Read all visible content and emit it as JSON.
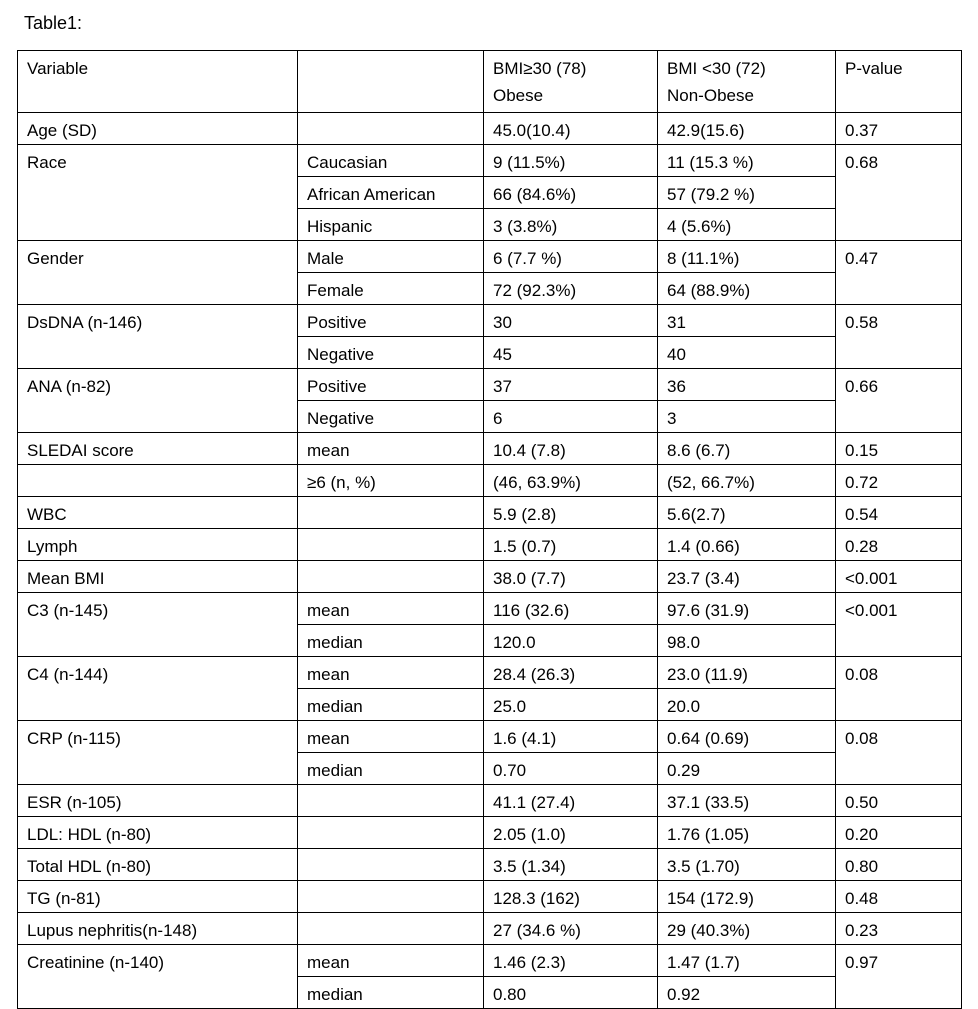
{
  "title": "Table1:",
  "header": {
    "variable": "Variable",
    "sub": "",
    "obese": [
      "BMI≥30 (78)",
      "Obese"
    ],
    "nonobese": [
      "BMI <30 (72)",
      "Non-Obese"
    ],
    "p": "P-value"
  },
  "groups": [
    {
      "variable": "Age (SD)",
      "p": "0.37",
      "rows": [
        {
          "sub": "",
          "obese": "45.0(10.4)",
          "nonobese": "42.9(15.6)"
        }
      ]
    },
    {
      "variable": "Race",
      "p": "0.68",
      "rows": [
        {
          "sub": "Caucasian",
          "obese": "9 (11.5%)",
          "nonobese": "11 (15.3 %)"
        },
        {
          "sub": "African American",
          "obese": "66 (84.6%)",
          "nonobese": "57 (79.2 %)"
        },
        {
          "sub": "Hispanic",
          "obese": "3 (3.8%)",
          "nonobese": "4 (5.6%)"
        }
      ]
    },
    {
      "variable": "Gender",
      "p": "0.47",
      "rows": [
        {
          "sub": "Male",
          "obese": "6 (7.7 %)",
          "nonobese": "8 (11.1%)"
        },
        {
          "sub": "Female",
          "obese": "72 (92.3%)",
          "nonobese": "64 (88.9%)"
        }
      ]
    },
    {
      "variable": "DsDNA (n-146)",
      "p": "0.58",
      "rows": [
        {
          "sub": "Positive",
          "obese": "30",
          "nonobese": "31"
        },
        {
          "sub": "Negative",
          "obese": "45",
          "nonobese": "40"
        }
      ]
    },
    {
      "variable": "ANA (n-82)",
      "p": "0.66",
      "rows": [
        {
          "sub": "Positive",
          "obese": "37",
          "nonobese": "36"
        },
        {
          "sub": "Negative",
          "obese": "6",
          "nonobese": "3"
        }
      ]
    },
    {
      "variable": "SLEDAI score",
      "p": "0.15",
      "rows": [
        {
          "sub": "mean",
          "obese": "10.4 (7.8)",
          "nonobese": "8.6 (6.7)"
        }
      ]
    },
    {
      "variable": "",
      "p": "0.72",
      "rows": [
        {
          "sub": "≥6 (n, %)",
          "obese": "(46, 63.9%)",
          "nonobese": "(52, 66.7%)"
        }
      ]
    },
    {
      "variable": "WBC",
      "p": "0.54",
      "rows": [
        {
          "sub": "",
          "obese": "5.9 (2.8)",
          "nonobese": "5.6(2.7)"
        }
      ]
    },
    {
      "variable": "Lymph",
      "p": "0.28",
      "rows": [
        {
          "sub": "",
          "obese": "1.5 (0.7)",
          "nonobese": "1.4 (0.66)"
        }
      ]
    },
    {
      "variable": "Mean BMI",
      "p": "<0.001",
      "rows": [
        {
          "sub": "",
          "obese": "38.0 (7.7)",
          "nonobese": "23.7 (3.4)"
        }
      ]
    },
    {
      "variable": "C3 (n-145)",
      "p": "<0.001",
      "rows": [
        {
          "sub": "mean",
          "obese": "116 (32.6)",
          "nonobese": "97.6 (31.9)"
        },
        {
          "sub": "median",
          "obese": "120.0",
          "nonobese": "98.0"
        }
      ]
    },
    {
      "variable": "C4 (n-144)",
      "p": "0.08",
      "rows": [
        {
          "sub": "mean",
          "obese": "28.4 (26.3)",
          "nonobese": "23.0 (11.9)"
        },
        {
          "sub": "median",
          "obese": "25.0",
          "nonobese": "20.0"
        }
      ]
    },
    {
      "variable": "CRP (n-115)",
      "p": "0.08",
      "rows": [
        {
          "sub": "mean",
          "obese": "1.6 (4.1)",
          "nonobese": "0.64 (0.69)"
        },
        {
          "sub": "median",
          "obese": "0.70",
          "nonobese": "0.29"
        }
      ]
    },
    {
      "variable": "ESR (n-105)",
      "p": "0.50",
      "rows": [
        {
          "sub": "",
          "obese": "41.1 (27.4)",
          "nonobese": "37.1 (33.5)"
        }
      ]
    },
    {
      "variable": "LDL: HDL (n-80)",
      "p": "0.20",
      "rows": [
        {
          "sub": "",
          "obese": "2.05 (1.0)",
          "nonobese": "1.76 (1.05)"
        }
      ]
    },
    {
      "variable": "Total HDL (n-80)",
      "p": "0.80",
      "rows": [
        {
          "sub": "",
          "obese": "3.5 (1.34)",
          "nonobese": "3.5 (1.70)"
        }
      ]
    },
    {
      "variable": "TG (n-81)",
      "p": "0.48",
      "rows": [
        {
          "sub": "",
          "obese": "128.3 (162)",
          "nonobese": "154 (172.9)"
        }
      ]
    },
    {
      "variable": "Lupus nephritis(n-148)",
      "p": "0.23",
      "rows": [
        {
          "sub": "",
          "obese": "27 (34.6 %)",
          "nonobese": "29 (40.3%)"
        }
      ]
    },
    {
      "variable": "Creatinine (n-140)",
      "p": "0.97",
      "rows": [
        {
          "sub": "mean",
          "obese": "1.46 (2.3)",
          "nonobese": "1.47 (1.7)"
        },
        {
          "sub": "median",
          "obese": "0.80",
          "nonobese": "0.92"
        }
      ]
    }
  ]
}
